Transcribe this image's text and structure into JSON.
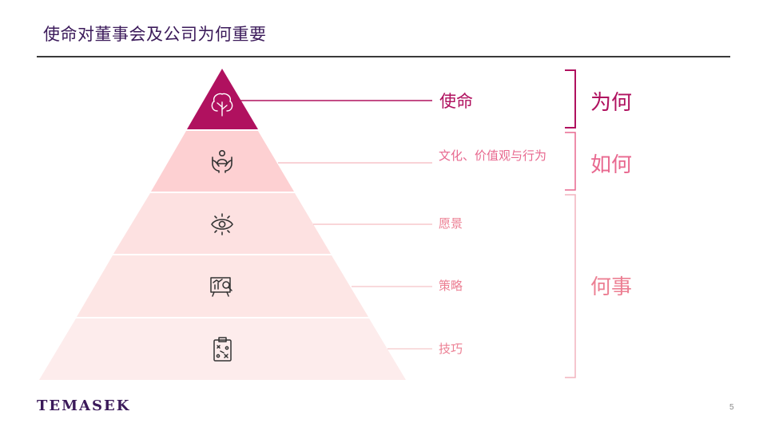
{
  "title": "使命对董事会及公司为何重要",
  "pyramid": [
    {
      "label": "使命",
      "icon": "tree-icon",
      "color": "#b0115f"
    },
    {
      "label": "文化、价值观与行为",
      "icon": "hands-person-icon",
      "color": "#fdd0d2"
    },
    {
      "label": "愿景",
      "icon": "eye-icon",
      "color": "#fde1e1"
    },
    {
      "label": "策略",
      "icon": "chart-magnifier-icon",
      "color": "#fde6e5"
    },
    {
      "label": "技巧",
      "icon": "clipboard-plan-icon",
      "color": "#fdecec"
    }
  ],
  "groups": {
    "why": "为何",
    "how": "如何",
    "what": "何事"
  },
  "footer": {
    "logo": "TEMASEK",
    "page_number": "5"
  },
  "colors": {
    "accent_dark": "#b0115f",
    "accent_mid": "#e8688f",
    "accent_light": "#ec7f93",
    "title": "#3b1a5a"
  }
}
